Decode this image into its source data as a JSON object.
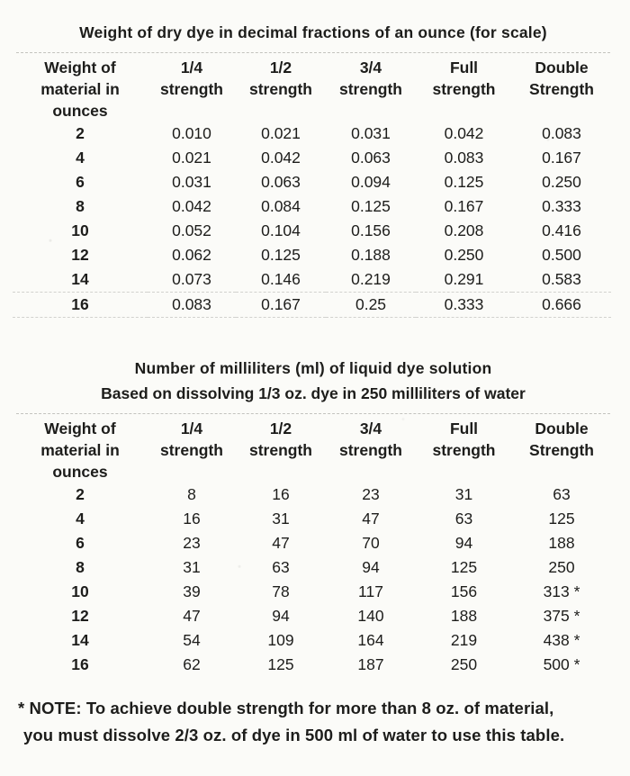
{
  "page": {
    "background": "#fbfbf8",
    "text_color": "#1d1d1b"
  },
  "columns": [
    [
      "Weight of",
      "material in",
      "ounces"
    ],
    [
      "1/4",
      "strength"
    ],
    [
      "1/2",
      "strength"
    ],
    [
      "3/4",
      "strength"
    ],
    [
      "Full",
      "strength"
    ],
    [
      "Double",
      "Strength"
    ]
  ],
  "table1": {
    "title": "Weight of dry dye in decimal fractions of an ounce (for scale)",
    "rows": [
      [
        "2",
        "0.010",
        "0.021",
        "0.031",
        "0.042",
        "0.083"
      ],
      [
        "4",
        "0.021",
        "0.042",
        "0.063",
        "0.083",
        "0.167"
      ],
      [
        "6",
        "0.031",
        "0.063",
        "0.094",
        "0.125",
        "0.250"
      ],
      [
        "8",
        "0.042",
        "0.084",
        "0.125",
        "0.167",
        "0.333"
      ],
      [
        "10",
        "0.052",
        "0.104",
        "0.156",
        "0.208",
        "0.416"
      ],
      [
        "12",
        "0.062",
        "0.125",
        "0.188",
        "0.250",
        "0.500"
      ],
      [
        "14",
        "0.073",
        "0.146",
        "0.219",
        "0.291",
        "0.583"
      ],
      [
        "16",
        "0.083",
        "0.167",
        "0.25",
        "0.333",
        "0.666"
      ]
    ]
  },
  "table2": {
    "title": "Number of milliliters (ml) of liquid dye solution",
    "subtitle": "Based on dissolving 1/3 oz. dye in 250 milliliters of water",
    "rows": [
      [
        "2",
        "8",
        "16",
        "23",
        "31",
        "63"
      ],
      [
        "4",
        "16",
        "31",
        "47",
        "63",
        "125"
      ],
      [
        "6",
        "23",
        "47",
        "70",
        "94",
        "188"
      ],
      [
        "8",
        "31",
        "63",
        "94",
        "125",
        "250"
      ],
      [
        "10",
        "39",
        "78",
        "117",
        "156",
        "313 *"
      ],
      [
        "12",
        "47",
        "94",
        "140",
        "188",
        "375 *"
      ],
      [
        "14",
        "54",
        "109",
        "164",
        "219",
        "438 *"
      ],
      [
        "16",
        "62",
        "125",
        "187",
        "250",
        "500 *"
      ]
    ]
  },
  "note": {
    "line1": "* NOTE: To achieve double strength for more than 8 oz. of material,",
    "line2": "you must dissolve 2/3 oz. of dye in 500 ml of water to use this table."
  }
}
